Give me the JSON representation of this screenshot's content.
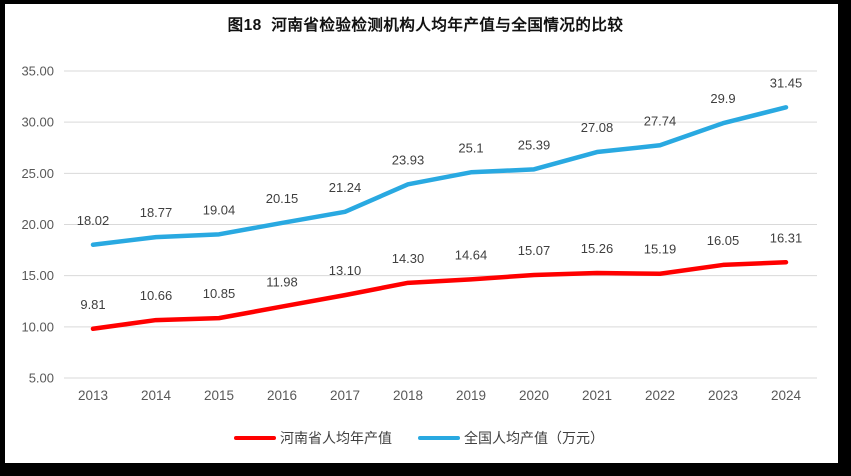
{
  "figure": {
    "title": "图18  河南省检验检测机构人均年产值与全国情况的比较"
  },
  "chart_data": {
    "type": "line",
    "title": "图18  河南省检验检测机构人均年产值与全国情况的比较",
    "categories": [
      "2013",
      "2014",
      "2015",
      "2016",
      "2017",
      "2018",
      "2019",
      "2020",
      "2021",
      "2022",
      "2023",
      "2024"
    ],
    "series": [
      {
        "name": "河南省人均年产值",
        "color": "#ff0000",
        "values": [
          9.81,
          10.66,
          10.85,
          11.98,
          13.1,
          14.3,
          14.64,
          15.07,
          15.26,
          15.19,
          16.05,
          16.31
        ],
        "labels": [
          "9.81",
          "10.66",
          "10.85",
          "11.98",
          "13.10",
          "14.30",
          "14.64",
          "15.07",
          "15.26",
          "15.19",
          "16.05",
          "16.31"
        ]
      },
      {
        "name": "全国人均产值（万元）",
        "color": "#29a9e1",
        "values": [
          18.02,
          18.77,
          19.04,
          20.15,
          21.24,
          23.93,
          25.1,
          25.39,
          27.08,
          27.74,
          29.9,
          31.45
        ],
        "labels": [
          "18.02",
          "18.77",
          "19.04",
          "20.15",
          "21.24",
          "23.93",
          "25.1",
          "25.39",
          "27.08",
          "27.74",
          "29.9",
          "31.45"
        ]
      }
    ],
    "xlabel": "",
    "ylabel": "",
    "ylim": [
      5,
      35
    ],
    "ytick_step": 5,
    "ytick_labels": [
      "5.00",
      "10.00",
      "15.00",
      "20.00",
      "25.00",
      "30.00",
      "35.00"
    ],
    "grid": true,
    "grid_color": "#d9d9d9",
    "axis_label_color": "#595959",
    "data_label_color": "#3f3f3f",
    "legend_position": "bottom"
  },
  "legend": {
    "items": [
      {
        "label": "河南省人均年产值",
        "color": "#ff0000"
      },
      {
        "label": "全国人均产值（万元）",
        "color": "#29a9e1"
      }
    ]
  }
}
